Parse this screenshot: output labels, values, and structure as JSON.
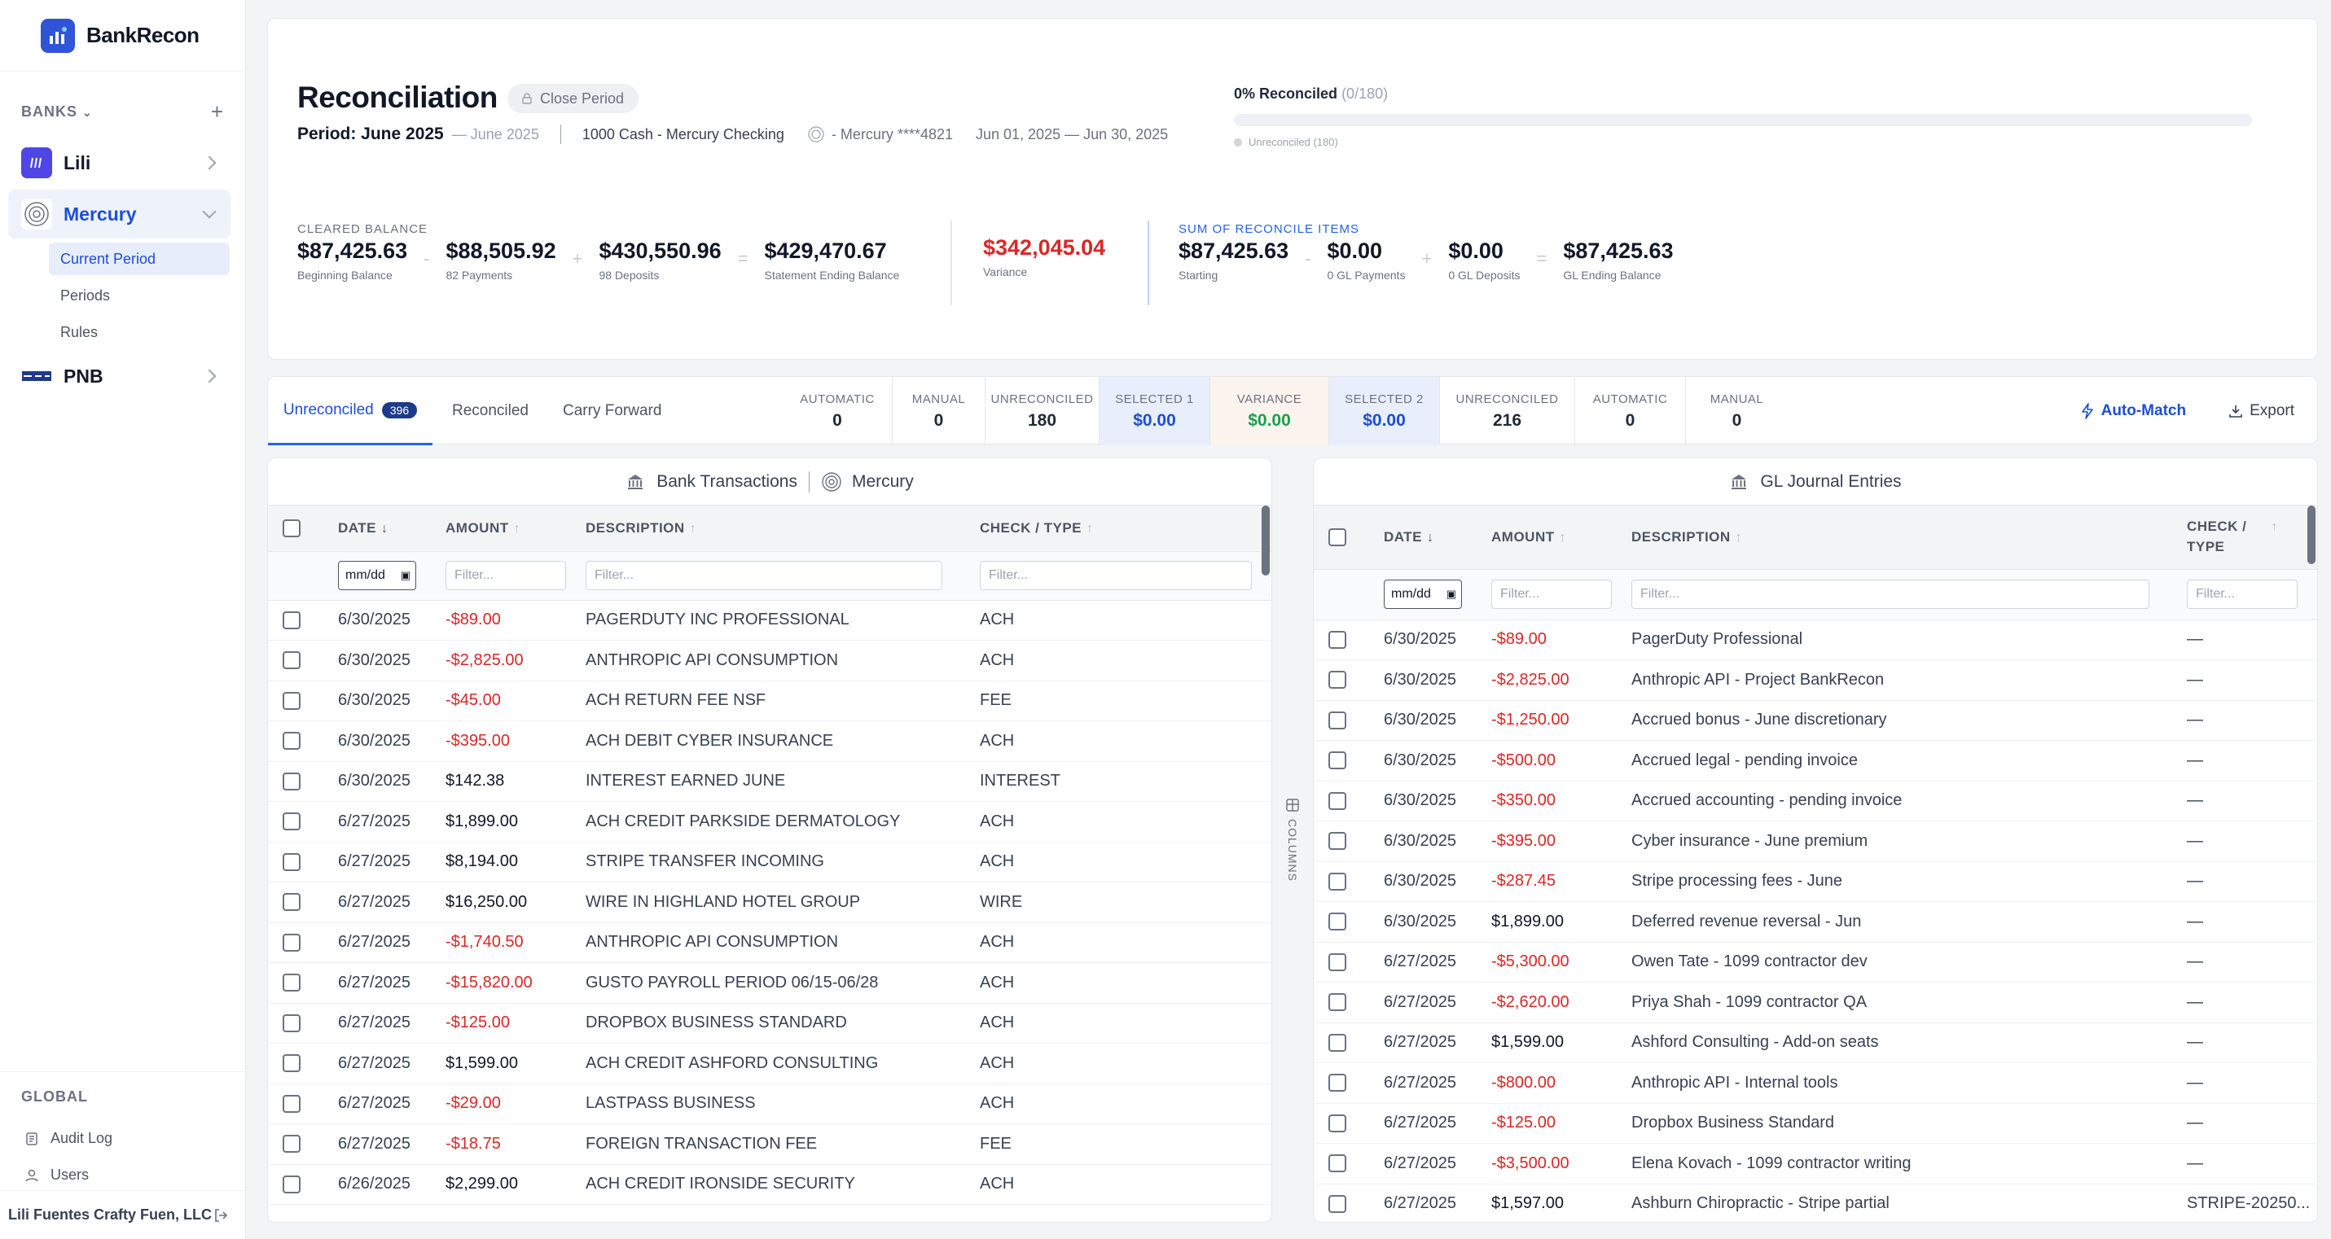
{
  "app": {
    "name": "BankRecon"
  },
  "sidebar": {
    "banks_label": "BANKS",
    "banks": [
      {
        "name": "Lili",
        "icon": "lili-logo"
      },
      {
        "name": "Mercury",
        "icon": "mercury-logo"
      },
      {
        "name": "PNB",
        "icon": "pnb-logo"
      }
    ],
    "subnav": [
      {
        "label": "Current Period"
      },
      {
        "label": "Periods"
      },
      {
        "label": "Rules"
      }
    ],
    "global_label": "GLOBAL",
    "global_items": [
      {
        "label": "Audit Log",
        "icon": "audit-log-icon"
      },
      {
        "label": "Users",
        "icon": "users-icon"
      }
    ],
    "user": "Lili Fuentes Crafty Fuen, LLC"
  },
  "header": {
    "title": "Reconciliation",
    "close_period": "Close Period",
    "period": "Period: June 2025",
    "period_muted": "— June 2025",
    "account": "1000 Cash - Mercury Checking",
    "bank_account": "- Mercury ****4821",
    "date_range": "Jun 01, 2025 — Jun 30, 2025",
    "progress_label": "0% Reconciled",
    "progress_count": "(0/180)",
    "progress_fraction": 0,
    "progress_sub": "Unreconciled (180)"
  },
  "cleared": {
    "title": "CLEARED BALANCE",
    "beginning": {
      "value": "$87,425.63",
      "label": "Beginning Balance"
    },
    "payments": {
      "value": "$88,505.92",
      "label": "82 Payments"
    },
    "deposits": {
      "value": "$430,550.96",
      "label": "98 Deposits"
    },
    "ending": {
      "value": "$429,470.67",
      "label": "Statement Ending Balance"
    },
    "op_minus": "-",
    "op_plus": "+",
    "op_eq": "="
  },
  "variance": {
    "value": "$342,045.04",
    "label": "Variance"
  },
  "sum_items": {
    "title": "SUM OF RECONCILE ITEMS",
    "starting": {
      "value": "$87,425.63",
      "label": "Starting"
    },
    "gl_payments": {
      "value": "$0.00",
      "label": "0 GL Payments"
    },
    "gl_deposits": {
      "value": "$0.00",
      "label": "0 GL Deposits"
    },
    "gl_ending": {
      "value": "$87,425.63",
      "label": "GL Ending Balance"
    }
  },
  "tabs": [
    {
      "label": "Unreconciled",
      "badge": "396"
    },
    {
      "label": "Reconciled"
    },
    {
      "label": "Carry Forward"
    }
  ],
  "stats": [
    {
      "label": "AUTOMATIC",
      "value": "0"
    },
    {
      "label": "MANUAL",
      "value": "0"
    },
    {
      "label": "UNRECONCILED",
      "value": "180"
    },
    {
      "label": "SELECTED 1",
      "value": "$0.00"
    },
    {
      "label": "VARIANCE",
      "value": "$0.00"
    },
    {
      "label": "SELECTED 2",
      "value": "$0.00"
    },
    {
      "label": "UNRECONCILED",
      "value": "216"
    },
    {
      "label": "AUTOMATIC",
      "value": "0"
    },
    {
      "label": "MANUAL",
      "value": "0"
    }
  ],
  "actions": {
    "auto_match": "Auto-Match",
    "export": "Export"
  },
  "bank_panel": {
    "title": "Bank Transactions",
    "bank": "Mercury",
    "columns": [
      "DATE",
      "AMOUNT",
      "DESCRIPTION",
      "CHECK / TYPE"
    ],
    "date_placeholder": "mm/dd",
    "filter_placeholder": "Filter...",
    "rows": [
      {
        "date": "6/30/2025",
        "amount": "-$89.00",
        "desc": "PAGERDUTY INC PROFESSIONAL",
        "type": "ACH"
      },
      {
        "date": "6/30/2025",
        "amount": "-$2,825.00",
        "desc": "ANTHROPIC API CONSUMPTION",
        "type": "ACH"
      },
      {
        "date": "6/30/2025",
        "amount": "-$45.00",
        "desc": "ACH RETURN FEE NSF",
        "type": "FEE"
      },
      {
        "date": "6/30/2025",
        "amount": "-$395.00",
        "desc": "ACH DEBIT CYBER INSURANCE",
        "type": "ACH"
      },
      {
        "date": "6/30/2025",
        "amount": "$142.38",
        "desc": "INTEREST EARNED JUNE",
        "type": "INTEREST"
      },
      {
        "date": "6/27/2025",
        "amount": "$1,899.00",
        "desc": "ACH CREDIT PARKSIDE DERMATOLOGY",
        "type": "ACH"
      },
      {
        "date": "6/27/2025",
        "amount": "$8,194.00",
        "desc": "STRIPE TRANSFER INCOMING",
        "type": "ACH"
      },
      {
        "date": "6/27/2025",
        "amount": "$16,250.00",
        "desc": "WIRE IN HIGHLAND HOTEL GROUP",
        "type": "WIRE"
      },
      {
        "date": "6/27/2025",
        "amount": "-$1,740.50",
        "desc": "ANTHROPIC API CONSUMPTION",
        "type": "ACH"
      },
      {
        "date": "6/27/2025",
        "amount": "-$15,820.00",
        "desc": "GUSTO PAYROLL PERIOD 06/15-06/28",
        "type": "ACH"
      },
      {
        "date": "6/27/2025",
        "amount": "-$125.00",
        "desc": "DROPBOX BUSINESS STANDARD",
        "type": "ACH"
      },
      {
        "date": "6/27/2025",
        "amount": "$1,599.00",
        "desc": "ACH CREDIT ASHFORD CONSULTING",
        "type": "ACH"
      },
      {
        "date": "6/27/2025",
        "amount": "-$29.00",
        "desc": "LASTPASS BUSINESS",
        "type": "ACH"
      },
      {
        "date": "6/27/2025",
        "amount": "-$18.75",
        "desc": "FOREIGN TRANSACTION FEE",
        "type": "FEE"
      },
      {
        "date": "6/26/2025",
        "amount": "$2,299.00",
        "desc": "ACH CREDIT IRONSIDE SECURITY",
        "type": "ACH"
      }
    ]
  },
  "columns_tab": "COLUMNS",
  "gl_panel": {
    "title": "GL Journal Entries",
    "columns": [
      "DATE",
      "AMOUNT",
      "DESCRIPTION",
      "CHECK /",
      "TYPE"
    ],
    "date_placeholder": "mm/dd",
    "filter_placeholder": "Filter...",
    "rows": [
      {
        "date": "6/30/2025",
        "amount": "-$89.00",
        "desc": "PagerDuty Professional",
        "type": "—"
      },
      {
        "date": "6/30/2025",
        "amount": "-$2,825.00",
        "desc": "Anthropic API - Project BankRecon",
        "type": "—"
      },
      {
        "date": "6/30/2025",
        "amount": "-$1,250.00",
        "desc": "Accrued bonus - June discretionary",
        "type": "—"
      },
      {
        "date": "6/30/2025",
        "amount": "-$500.00",
        "desc": "Accrued legal - pending invoice",
        "type": "—"
      },
      {
        "date": "6/30/2025",
        "amount": "-$350.00",
        "desc": "Accrued accounting - pending invoice",
        "type": "—"
      },
      {
        "date": "6/30/2025",
        "amount": "-$395.00",
        "desc": "Cyber insurance - June premium",
        "type": "—"
      },
      {
        "date": "6/30/2025",
        "amount": "-$287.45",
        "desc": "Stripe processing fees - June",
        "type": "—"
      },
      {
        "date": "6/30/2025",
        "amount": "$1,899.00",
        "desc": "Deferred revenue reversal - Jun",
        "type": "—"
      },
      {
        "date": "6/27/2025",
        "amount": "-$5,300.00",
        "desc": "Owen Tate - 1099 contractor dev",
        "type": "—"
      },
      {
        "date": "6/27/2025",
        "amount": "-$2,620.00",
        "desc": "Priya Shah - 1099 contractor QA",
        "type": "—"
      },
      {
        "date": "6/27/2025",
        "amount": "$1,599.00",
        "desc": "Ashford Consulting - Add-on seats",
        "type": "—"
      },
      {
        "date": "6/27/2025",
        "amount": "-$800.00",
        "desc": "Anthropic API - Internal tools",
        "type": "—"
      },
      {
        "date": "6/27/2025",
        "amount": "-$125.00",
        "desc": "Dropbox Business Standard",
        "type": "—"
      },
      {
        "date": "6/27/2025",
        "amount": "-$3,500.00",
        "desc": "Elena Kovach - 1099 contractor writing",
        "type": "—"
      },
      {
        "date": "6/27/2025",
        "amount": "$1,597.00",
        "desc": "Ashburn Chiropractic - Stripe partial",
        "type": "STRIPE-20250..."
      }
    ]
  },
  "colors": {
    "accent": "#2563eb",
    "negative": "#dc2626",
    "positive": "#16a34a",
    "variance": "#dc2626"
  }
}
